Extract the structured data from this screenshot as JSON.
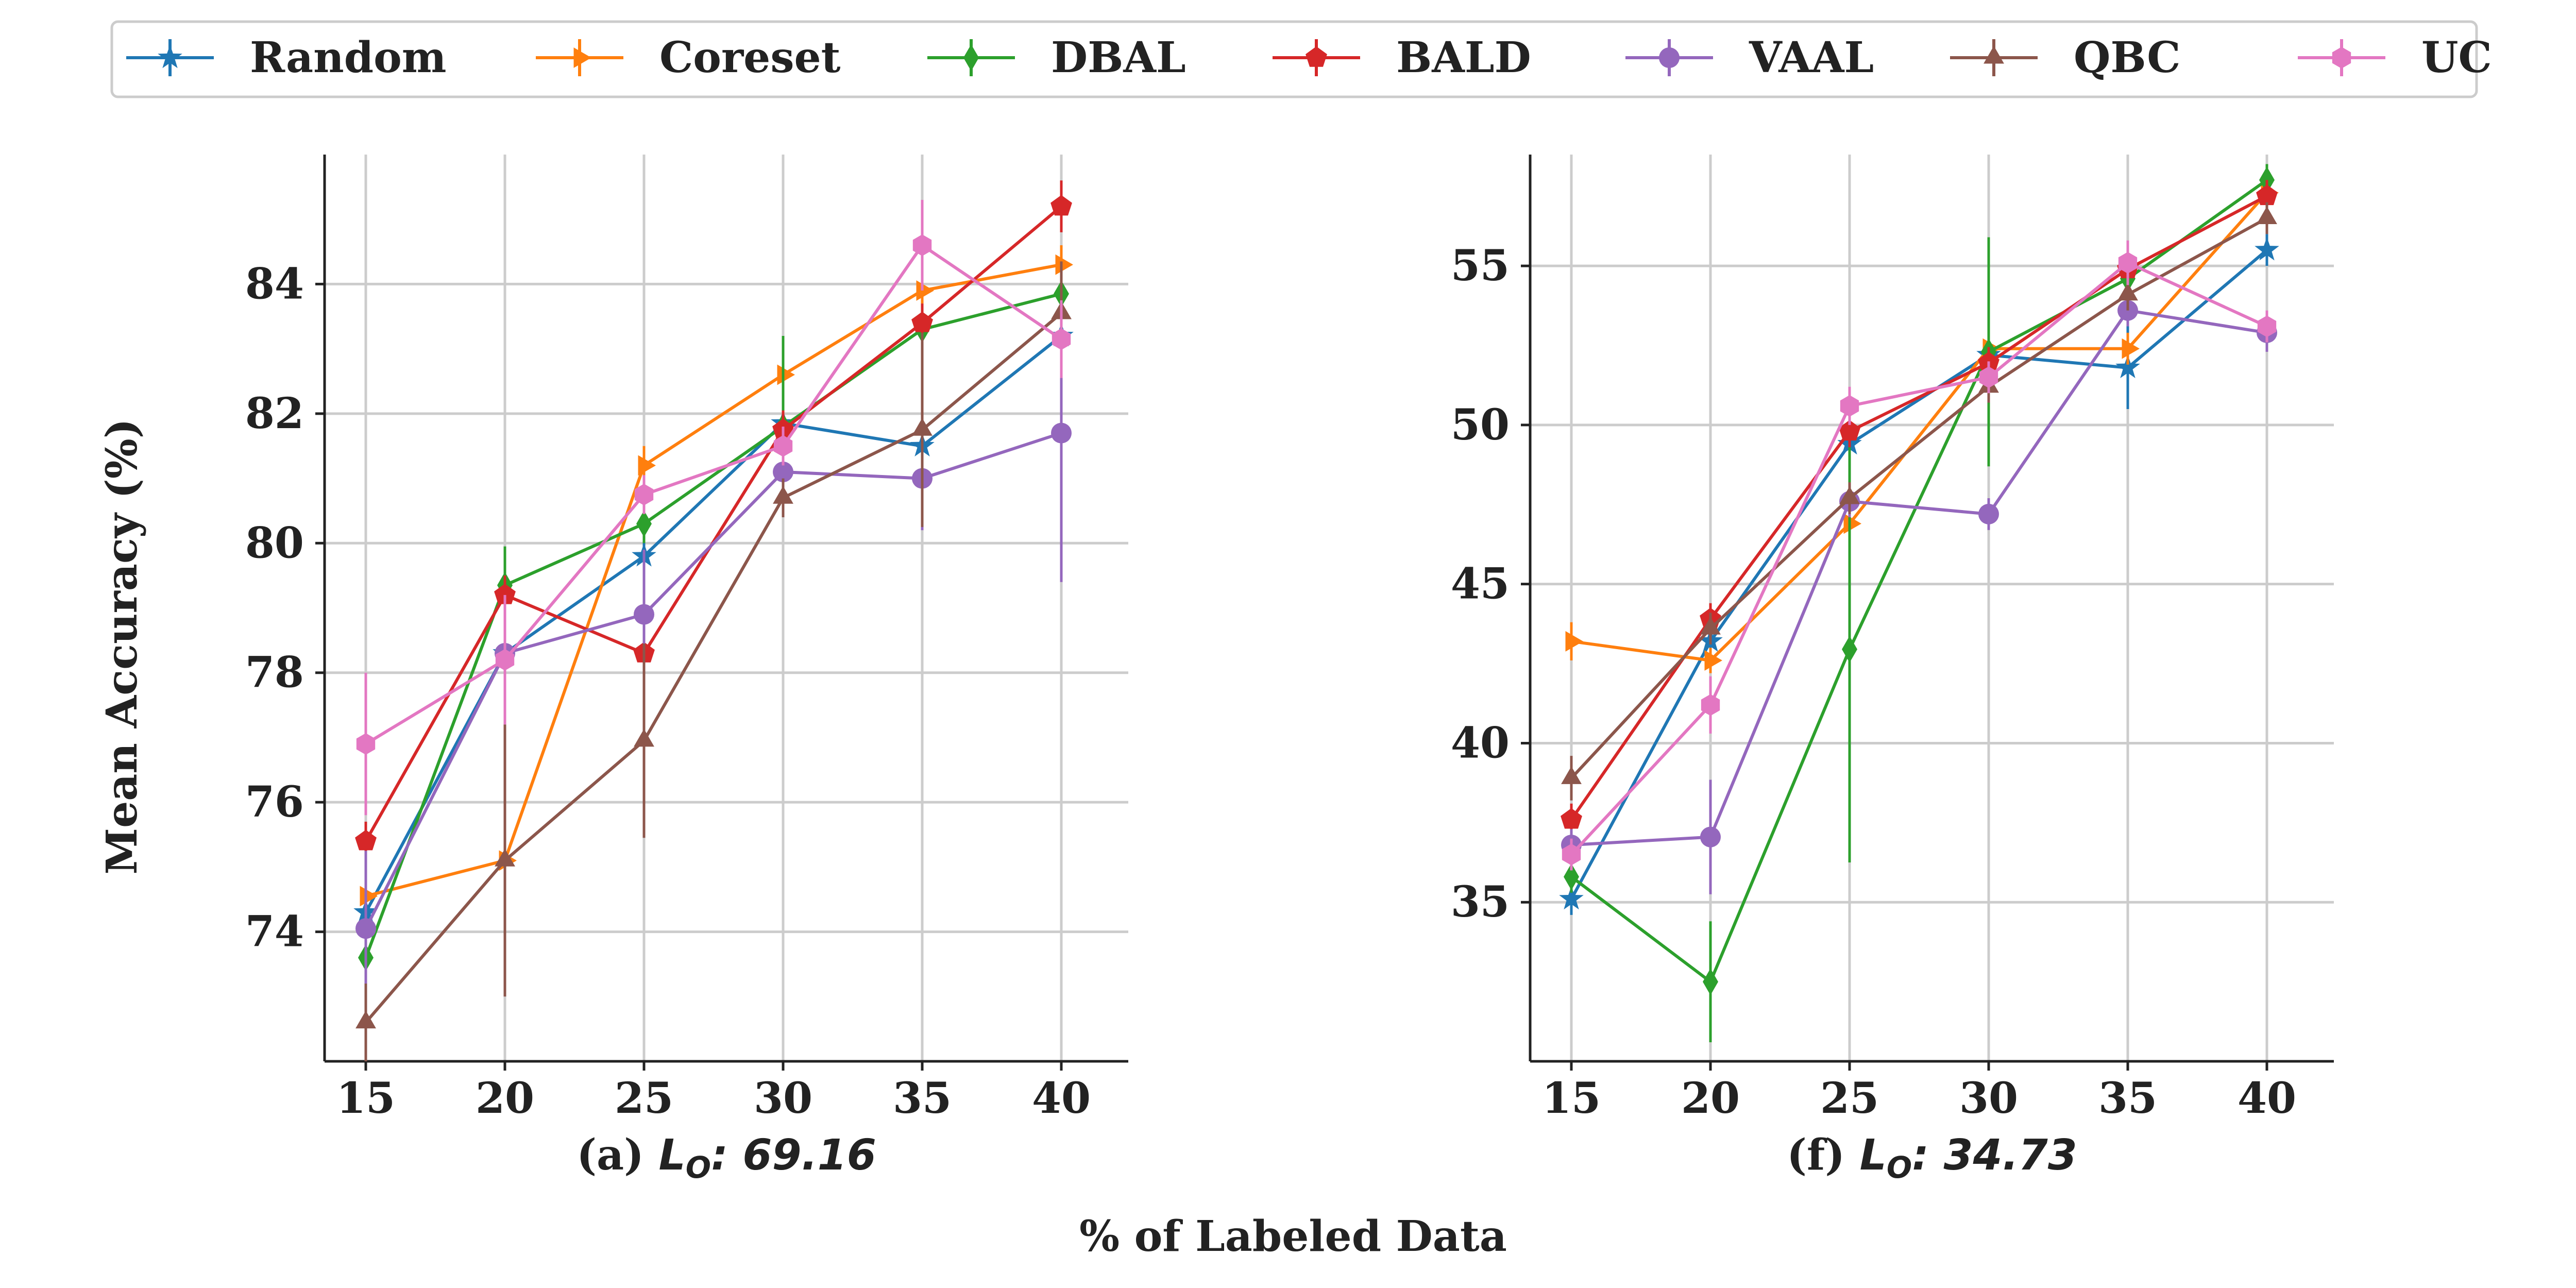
{
  "figure": {
    "xlabel": "% of Labeled Data",
    "ylabel": "Mean Accuracy (%)"
  },
  "legend": {
    "placement": "top-center",
    "entries": [
      {
        "name": "Random",
        "color": "#1f77b4",
        "marker": "star"
      },
      {
        "name": "Coreset",
        "color": "#ff7f0e",
        "marker": "triangle-right"
      },
      {
        "name": "DBAL",
        "color": "#2ca02c",
        "marker": "diamond"
      },
      {
        "name": "BALD",
        "color": "#d62728",
        "marker": "pentagon"
      },
      {
        "name": "VAAL",
        "color": "#9467bd",
        "marker": "circle"
      },
      {
        "name": "QBC",
        "color": "#8c564b",
        "marker": "triangle-up"
      },
      {
        "name": "UC",
        "color": "#e377c2",
        "marker": "hexagon"
      }
    ]
  },
  "chart_data": [
    {
      "type": "line",
      "caption_prefix": "(a) ",
      "caption_math": "L",
      "caption_sub": "O",
      "caption_value": ": 69.16",
      "x": [
        15,
        20,
        25,
        30,
        35,
        40
      ],
      "xticks": [
        "15",
        "20",
        "25",
        "30",
        "35",
        "40"
      ],
      "yticks": [
        74,
        76,
        78,
        80,
        82,
        84
      ],
      "xlim": [
        13.5,
        42.5
      ],
      "ylim": [
        72.0,
        86.0
      ],
      "grid": true,
      "series": [
        {
          "name": "Random",
          "values": [
            74.3,
            78.3,
            79.8,
            81.85,
            81.5,
            83.2
          ],
          "err": [
            0.3,
            0.3,
            0.3,
            0.3,
            0.3,
            0.3
          ]
        },
        {
          "name": "Coreset",
          "values": [
            74.55,
            75.1,
            81.2,
            82.6,
            83.9,
            84.3
          ],
          "err": [
            0.2,
            0.2,
            0.3,
            0.2,
            0.2,
            0.3
          ]
        },
        {
          "name": "DBAL",
          "values": [
            73.6,
            79.35,
            80.3,
            81.8,
            83.3,
            83.85
          ],
          "err": [
            0.3,
            0.6,
            0.3,
            1.4,
            0.3,
            0.3
          ]
        },
        {
          "name": "BALD",
          "values": [
            75.4,
            79.2,
            78.3,
            81.75,
            83.4,
            85.2
          ],
          "err": [
            0.3,
            0.3,
            0.3,
            0.3,
            0.3,
            0.4
          ]
        },
        {
          "name": "VAAL",
          "values": [
            74.05,
            78.3,
            78.9,
            81.1,
            81.0,
            81.7
          ],
          "err": [
            1.2,
            0.3,
            1.0,
            0.3,
            0.8,
            2.3
          ]
        },
        {
          "name": "QBC",
          "values": [
            72.6,
            75.1,
            76.95,
            80.7,
            81.75,
            83.55
          ],
          "err": [
            0.6,
            2.1,
            1.5,
            0.3,
            1.5,
            0.8
          ]
        },
        {
          "name": "UC",
          "values": [
            76.9,
            78.2,
            80.75,
            81.5,
            84.6,
            83.15
          ],
          "err": [
            1.1,
            1.0,
            0.3,
            0.3,
            0.7,
            0.6
          ]
        }
      ]
    },
    {
      "type": "line",
      "caption_prefix": "(f) ",
      "caption_math": "L",
      "caption_sub": "O",
      "caption_value": ": 34.73",
      "x": [
        15,
        20,
        25,
        30,
        35,
        40
      ],
      "xticks": [
        "15",
        "20",
        "25",
        "30",
        "35",
        "40"
      ],
      "yticks": [
        35,
        40,
        45,
        50,
        55
      ],
      "xlim": [
        13.5,
        42.5
      ],
      "ylim": [
        30.0,
        58.5
      ],
      "grid": true,
      "series": [
        {
          "name": "Random",
          "values": [
            35.1,
            43.2,
            49.4,
            52.2,
            51.8,
            55.5
          ],
          "err": [
            0.5,
            0.5,
            0.5,
            0.5,
            1.3,
            0.5
          ]
        },
        {
          "name": "Coreset",
          "values": [
            43.2,
            42.6,
            46.9,
            52.4,
            52.4,
            57.3
          ],
          "err": [
            0.6,
            0.4,
            0.5,
            0.5,
            0.5,
            0.5
          ]
        },
        {
          "name": "DBAL",
          "values": [
            35.8,
            32.5,
            42.95,
            52.3,
            54.6,
            57.7
          ],
          "err": [
            0.5,
            1.9,
            6.7,
            3.6,
            0.5,
            0.5
          ]
        },
        {
          "name": "BALD",
          "values": [
            37.6,
            43.9,
            49.8,
            51.95,
            54.9,
            57.2
          ],
          "err": [
            0.5,
            0.5,
            0.5,
            0.5,
            0.5,
            0.5
          ]
        },
        {
          "name": "VAAL",
          "values": [
            36.8,
            37.05,
            47.6,
            47.2,
            53.6,
            52.9
          ],
          "err": [
            0.5,
            1.8,
            0.5,
            0.5,
            0.5,
            0.6
          ]
        },
        {
          "name": "QBC",
          "values": [
            38.9,
            43.6,
            47.7,
            51.2,
            54.1,
            56.5
          ],
          "err": [
            0.7,
            0.5,
            0.5,
            0.5,
            0.5,
            0.5
          ]
        },
        {
          "name": "UC",
          "values": [
            36.5,
            41.2,
            50.6,
            51.5,
            55.1,
            53.1
          ],
          "err": [
            0.5,
            0.9,
            0.6,
            0.5,
            0.7,
            0.5
          ]
        }
      ]
    }
  ]
}
